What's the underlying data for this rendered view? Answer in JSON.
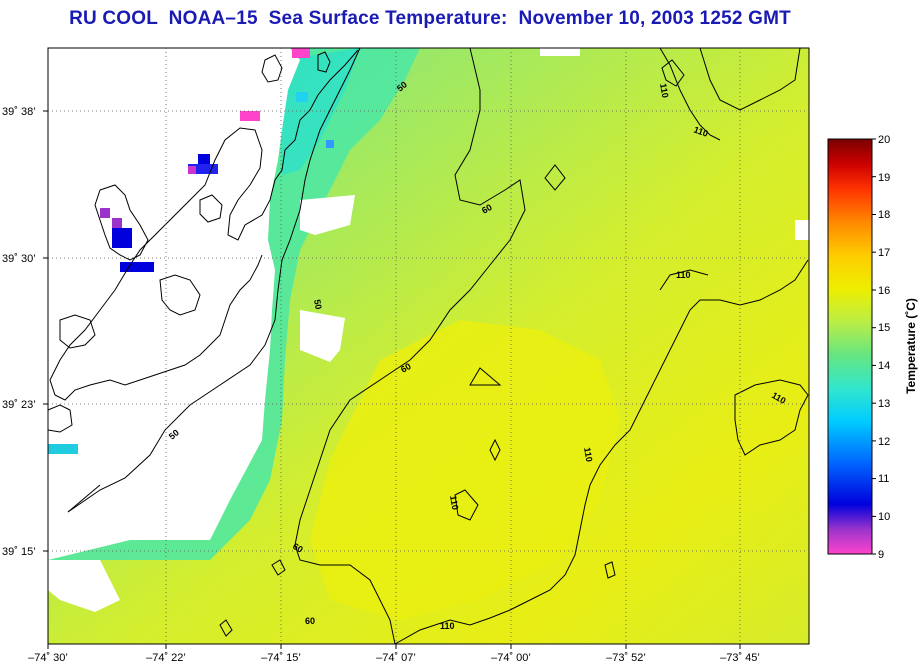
{
  "title": "RU COOL  NOAA–15  Sea Surface Temperature:  November 10, 2003 1252 GMT",
  "map": {
    "longitude_ticks": [
      "–74˚ 30’",
      "–74˚ 22’",
      "–74˚ 15’",
      "–74˚ 07’",
      "–74˚ 00’",
      "–73˚ 52’",
      "–73˚ 45’"
    ],
    "latitude_ticks": [
      "39˚ 38’",
      "39˚ 30’",
      "39˚ 23’",
      "39˚ 15’"
    ],
    "contour_labels": [
      "50",
      "50",
      "50",
      "60",
      "60",
      "60",
      "60",
      "110",
      "110",
      "110",
      "110",
      "110",
      "110",
      "110"
    ]
  },
  "colorbar": {
    "label": "Temperature (˚C)",
    "ticks": [
      "20",
      "19",
      "18",
      "17",
      "16",
      "15",
      "14",
      "13",
      "12",
      "11",
      "10",
      "9"
    ],
    "min": 9,
    "max": 20,
    "colors": [
      "#ff44cc",
      "#9933cc",
      "#0000dd",
      "#0066ff",
      "#00ccff",
      "#33e6cc",
      "#66e680",
      "#bbee44",
      "#eeee00",
      "#ffcc00",
      "#ff8800",
      "#ff3300",
      "#cc0000",
      "#7a0000"
    ]
  }
}
